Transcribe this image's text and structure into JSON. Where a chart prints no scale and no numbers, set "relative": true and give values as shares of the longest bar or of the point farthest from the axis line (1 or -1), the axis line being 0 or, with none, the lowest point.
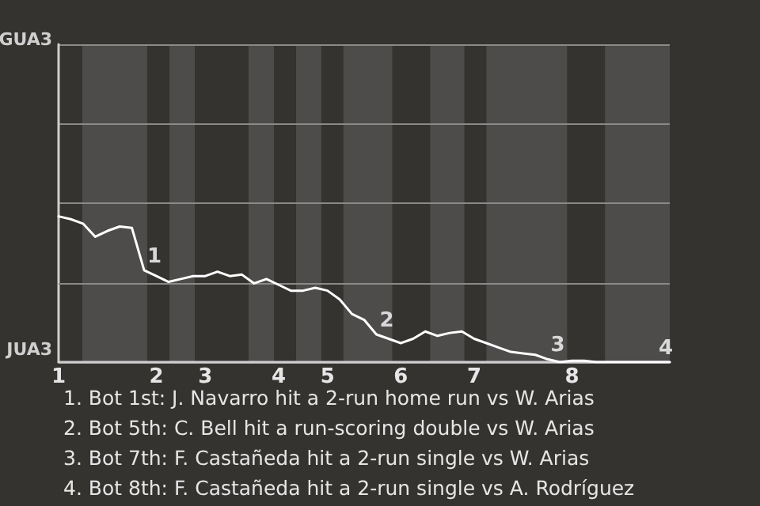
{
  "chart_data": {
    "type": "line",
    "relative": true,
    "categories": [
      "1",
      null,
      null,
      null,
      null,
      null,
      null,
      null,
      "2",
      null,
      null,
      null,
      "3",
      null,
      null,
      null,
      null,
      null,
      "4",
      null,
      null,
      null,
      "5",
      null,
      null,
      null,
      null,
      null,
      "6",
      null,
      null,
      null,
      null,
      null,
      "7",
      null,
      null,
      null,
      null,
      null,
      null,
      null,
      "8",
      null,
      null,
      null,
      null,
      null,
      null,
      null,
      null
    ],
    "series": [
      {
        "color": "#ffffff",
        "values": [
          1,
          0.98,
          0.95,
          0.86,
          0.9,
          0.93,
          0.92,
          0.63,
          0.59,
          0.55,
          0.57,
          0.59,
          0.59,
          0.62,
          0.59,
          0.6,
          0.54,
          0.57,
          0.53,
          0.49,
          0.49,
          0.51,
          0.49,
          0.43,
          0.33,
          0.29,
          0.19,
          0.16,
          0.13,
          0.16,
          0.21,
          0.18,
          0.2,
          0.21,
          0.16,
          0.13,
          0.1,
          0.07,
          0.06,
          0.05,
          0.02,
          0,
          0.01,
          0.01,
          0,
          0,
          0,
          0,
          0,
          0,
          0
        ]
      }
    ],
    "marker": "none",
    "line_style": "solid",
    "ref_lines": [
      {
        "axis": "y",
        "value": 0.54,
        "color": "#8a8a88"
      }
    ],
    "annotations": [
      {
        "text": "1",
        "y": 0.63
      },
      {
        "text": "2",
        "y": 0.19
      },
      {
        "text": "3",
        "y": 0.02
      },
      {
        "text": "4",
        "y": 0
      },
      "GUA3",
      "JUA3",
      "1. Bot 1st: J. Navarro hit a 2-run home run vs W. Arias",
      "2. Bot 5th: C. Bell hit a run-scoring double vs W. Arias",
      "3. Bot 7th: F. Castañeda hit a 2-run single vs W. Arias",
      "4. Bot 8th: F. Castañeda hit a 2-run single vs A. Rodríguez"
    ]
  }
}
